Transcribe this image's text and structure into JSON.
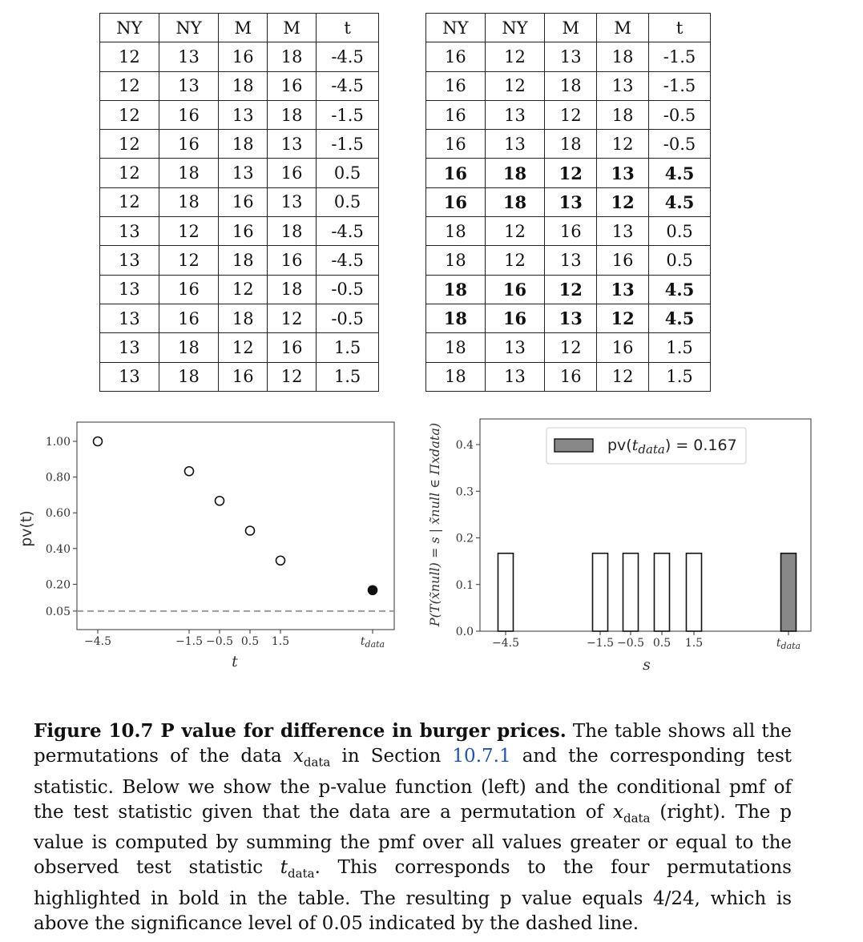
{
  "tables": {
    "left": {
      "headers": [
        "NY",
        "NY",
        "M",
        "M",
        "t"
      ],
      "rows": [
        {
          "cells": [
            "12",
            "13",
            "16",
            "18",
            "-4.5"
          ],
          "bold": false
        },
        {
          "cells": [
            "12",
            "13",
            "18",
            "16",
            "-4.5"
          ],
          "bold": false
        },
        {
          "cells": [
            "12",
            "16",
            "13",
            "18",
            "-1.5"
          ],
          "bold": false
        },
        {
          "cells": [
            "12",
            "16",
            "18",
            "13",
            "-1.5"
          ],
          "bold": false
        },
        {
          "cells": [
            "12",
            "18",
            "13",
            "16",
            "0.5"
          ],
          "bold": false
        },
        {
          "cells": [
            "12",
            "18",
            "16",
            "13",
            "0.5"
          ],
          "bold": false
        },
        {
          "cells": [
            "13",
            "12",
            "16",
            "18",
            "-4.5"
          ],
          "bold": false
        },
        {
          "cells": [
            "13",
            "12",
            "18",
            "16",
            "-4.5"
          ],
          "bold": false
        },
        {
          "cells": [
            "13",
            "16",
            "12",
            "18",
            "-0.5"
          ],
          "bold": false
        },
        {
          "cells": [
            "13",
            "16",
            "18",
            "12",
            "-0.5"
          ],
          "bold": false
        },
        {
          "cells": [
            "13",
            "18",
            "12",
            "16",
            "1.5"
          ],
          "bold": false
        },
        {
          "cells": [
            "13",
            "18",
            "16",
            "12",
            "1.5"
          ],
          "bold": false
        }
      ]
    },
    "right": {
      "headers": [
        "NY",
        "NY",
        "M",
        "M",
        "t"
      ],
      "rows": [
        {
          "cells": [
            "16",
            "12",
            "13",
            "18",
            "-1.5"
          ],
          "bold": false
        },
        {
          "cells": [
            "16",
            "12",
            "18",
            "13",
            "-1.5"
          ],
          "bold": false
        },
        {
          "cells": [
            "16",
            "13",
            "12",
            "18",
            "-0.5"
          ],
          "bold": false
        },
        {
          "cells": [
            "16",
            "13",
            "18",
            "12",
            "-0.5"
          ],
          "bold": false
        },
        {
          "cells": [
            "16",
            "18",
            "12",
            "13",
            "4.5"
          ],
          "bold": true
        },
        {
          "cells": [
            "16",
            "18",
            "13",
            "12",
            "4.5"
          ],
          "bold": true
        },
        {
          "cells": [
            "18",
            "12",
            "16",
            "13",
            "0.5"
          ],
          "bold": false
        },
        {
          "cells": [
            "18",
            "12",
            "13",
            "16",
            "0.5"
          ],
          "bold": false
        },
        {
          "cells": [
            "18",
            "16",
            "12",
            "13",
            "4.5"
          ],
          "bold": true
        },
        {
          "cells": [
            "18",
            "16",
            "13",
            "12",
            "4.5"
          ],
          "bold": true
        },
        {
          "cells": [
            "18",
            "13",
            "12",
            "16",
            "1.5"
          ],
          "bold": false
        },
        {
          "cells": [
            "18",
            "13",
            "16",
            "12",
            "1.5"
          ],
          "bold": false
        }
      ]
    }
  },
  "chart_data": [
    {
      "type": "scatter",
      "ylabel": "pv(t)",
      "xlabel": "t",
      "x_tick_labels": [
        "−4.5",
        "−1.5",
        "−0.5",
        "0.5",
        "1.5",
        "tdata"
      ],
      "y_tick_labels": [
        "0.05",
        "0.20",
        "0.40",
        "0.60",
        "0.80",
        "1.00"
      ],
      "y_ticks": [
        0.05,
        0.2,
        0.4,
        0.6,
        0.8,
        1.0
      ],
      "ylim": [
        0.0,
        1.05
      ],
      "points": [
        {
          "x": "−4.5",
          "y": 1.0,
          "filled": false
        },
        {
          "x": "−1.5",
          "y": 0.833,
          "filled": false
        },
        {
          "x": "−0.5",
          "y": 0.667,
          "filled": false
        },
        {
          "x": "0.5",
          "y": 0.5,
          "filled": false
        },
        {
          "x": "1.5",
          "y": 0.333,
          "filled": false
        },
        {
          "x": "tdata",
          "y": 0.167,
          "filled": true
        }
      ],
      "threshold": {
        "value": 0.05,
        "style": "dashed",
        "color": "#999999"
      }
    },
    {
      "type": "bar",
      "ylabel": "P(T(x̃null) = s | x̃null ∈ Πxdata)",
      "xlabel": "s",
      "x_tick_labels": [
        "−4.5",
        "−1.5",
        "−0.5",
        "0.5",
        "1.5",
        "tdata"
      ],
      "y_tick_labels": [
        "0.0",
        "0.1",
        "0.2",
        "0.3",
        "0.4"
      ],
      "y_ticks": [
        0.0,
        0.1,
        0.2,
        0.3,
        0.4
      ],
      "ylim": [
        0.0,
        0.455
      ],
      "values": [
        0.167,
        0.167,
        0.167,
        0.167,
        0.167,
        0.167
      ],
      "highlighted": [
        false,
        false,
        false,
        false,
        false,
        true
      ],
      "legend": {
        "label": "pv(tdata) = 0.167",
        "position": "top-right"
      },
      "colors": {
        "highlight": "#888888",
        "plain": "#ffffff"
      }
    }
  ],
  "caption": {
    "title": "Figure 10.7 P value for difference in burger prices.",
    "part1": "The table shows all the permutations of the data",
    "math_x": "x",
    "sub_data": "data",
    "part2": "in Section",
    "ref": "10.7.1",
    "part3": "and the corresponding test statistic. Below we show the p-value function (left) and the conditional pmf of the test statistic given that the data are a permutation of",
    "part4": "(right). The p value is computed by summing the pmf over all values greater or equal to the observed test statistic",
    "math_t": "t",
    "part5": ". This corresponds to the four permutations highlighted in bold in the table. The resulting p value equals 4/24, which is above the significance level of 0.05 indicated by the dashed line."
  }
}
